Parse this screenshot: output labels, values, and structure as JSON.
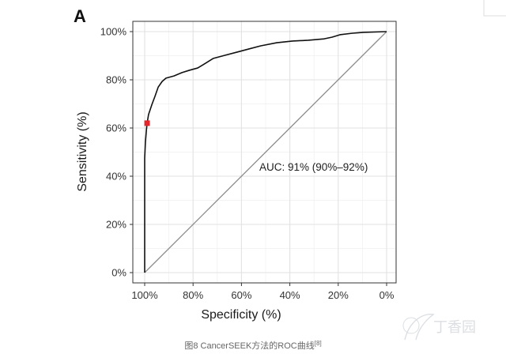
{
  "panel_label": "A",
  "caption": {
    "text": "图8 CancerSEEK方法的ROC曲线",
    "ref": "[8]"
  },
  "watermark": "丁香园",
  "colors": {
    "curve": "#111111",
    "reference": "#8c8c8c",
    "point": "#e3262b",
    "grid_major": "#e2e2e2",
    "grid_minor": "#efefef",
    "frame": "#333333",
    "caption": "#666666",
    "watermark": "#9aa3ad"
  },
  "chart_data": {
    "type": "line",
    "title": "",
    "xlabel": "Specificity (%)",
    "ylabel": "Sensitivity (%)",
    "xlim": [
      100,
      0
    ],
    "ylim": [
      0,
      100
    ],
    "x_reversed": true,
    "grid": true,
    "legend": "none",
    "x_ticks": {
      "values": [
        100,
        80,
        60,
        40,
        20,
        0
      ],
      "labels": [
        "100%",
        "80%",
        "60%",
        "40%",
        "20%",
        "0%"
      ]
    },
    "y_ticks": {
      "values": [
        0,
        20,
        40,
        60,
        80,
        100
      ],
      "labels": [
        "0%",
        "20%",
        "40%",
        "60%",
        "80%",
        "100%"
      ]
    },
    "series": [
      {
        "x": [
          100,
          100,
          99.7,
          99.3,
          99,
          98.4,
          97,
          95.8,
          94.4,
          92.8,
          91.2,
          87.9,
          84.6,
          81.4,
          78.1,
          74.8,
          71.6,
          66.7,
          61.8,
          56.9,
          52,
          45.4,
          38.9,
          32.4,
          25.8,
          22.5,
          19.3,
          14.4,
          9.5,
          0
        ],
        "y": [
          0,
          47.5,
          54,
          59,
          62,
          65.6,
          69.8,
          73,
          77,
          79.3,
          80.7,
          81.6,
          83,
          84,
          84.9,
          86.9,
          88.9,
          90.2,
          91.5,
          92.8,
          94.1,
          95.4,
          96.1,
          96.4,
          97,
          97.7,
          98.7,
          99.3,
          99.7,
          100
        ]
      }
    ],
    "reference_line": {
      "x": [
        100,
        0
      ],
      "y": [
        0,
        100
      ]
    },
    "highlight_point": {
      "x": 99,
      "y": 62
    },
    "annotations": [
      {
        "text": "AUC: 91% (90%–92%)"
      }
    ]
  }
}
